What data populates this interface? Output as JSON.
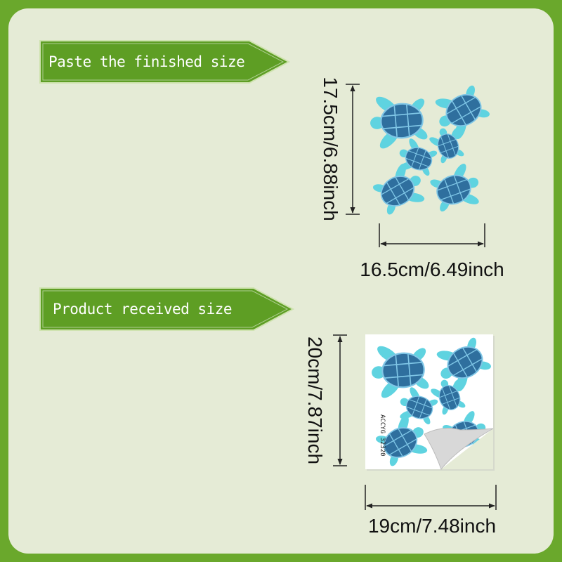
{
  "labels": {
    "finished": "Paste the finished size",
    "received": "Product received size"
  },
  "finished_size": {
    "height": "17.5cm/6.88inch",
    "width": "16.5cm/6.49inch"
  },
  "received_size": {
    "height": "20cm/7.87inch",
    "width": "19cm/7.48inch",
    "sheet_code": "ACCYG 32320"
  },
  "colors": {
    "frame": "#6aa82c",
    "background": "#e5ebd6",
    "banner": "#5e9e24",
    "turtle_shell": "#2f6f9e",
    "turtle_skin": "#5fd3e0"
  }
}
